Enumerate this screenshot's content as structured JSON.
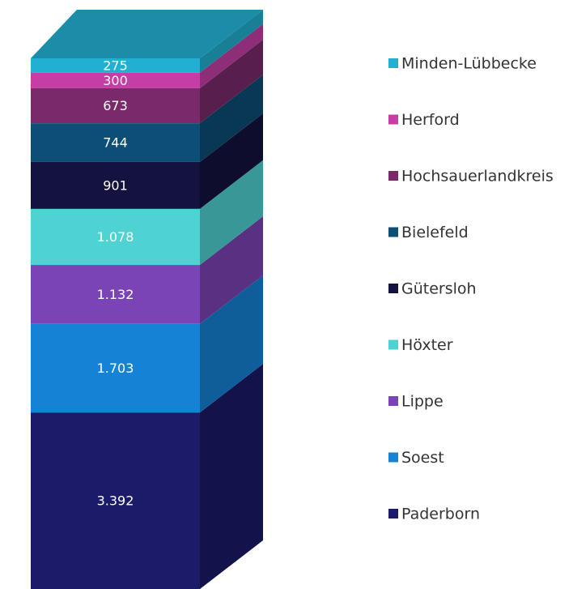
{
  "chart_data": {
    "type": "stacked-bar-3d",
    "stacked": true,
    "series": [
      {
        "name": "Minden-Lübbecke",
        "color": "#22b0d2",
        "values": [
          275
        ],
        "value_labels": [
          "275"
        ]
      },
      {
        "name": "Herford",
        "color": "#c53ea6",
        "values": [
          300
        ],
        "value_labels": [
          "300"
        ]
      },
      {
        "name": "Hochsauerlandkreis",
        "color": "#7a2a6a",
        "values": [
          673
        ],
        "value_labels": [
          "673"
        ]
      },
      {
        "name": "Bielefeld",
        "color": "#0d4e76",
        "values": [
          744
        ],
        "value_labels": [
          "744"
        ]
      },
      {
        "name": "Gütersloh",
        "color": "#14123f",
        "values": [
          901
        ],
        "value_labels": [
          "901"
        ]
      },
      {
        "name": "Höxter",
        "color": "#4fd3d2",
        "values": [
          1078
        ],
        "value_labels": [
          "1.078"
        ]
      },
      {
        "name": "Lippe",
        "color": "#7b44b6",
        "values": [
          1132
        ],
        "value_labels": [
          "1.132"
        ]
      },
      {
        "name": "Soest",
        "color": "#1682d5",
        "values": [
          1703
        ],
        "value_labels": [
          "1.703"
        ]
      },
      {
        "name": "Paderborn",
        "color": "#1b1b69",
        "values": [
          3392
        ],
        "value_labels": [
          "3.392"
        ]
      }
    ]
  }
}
